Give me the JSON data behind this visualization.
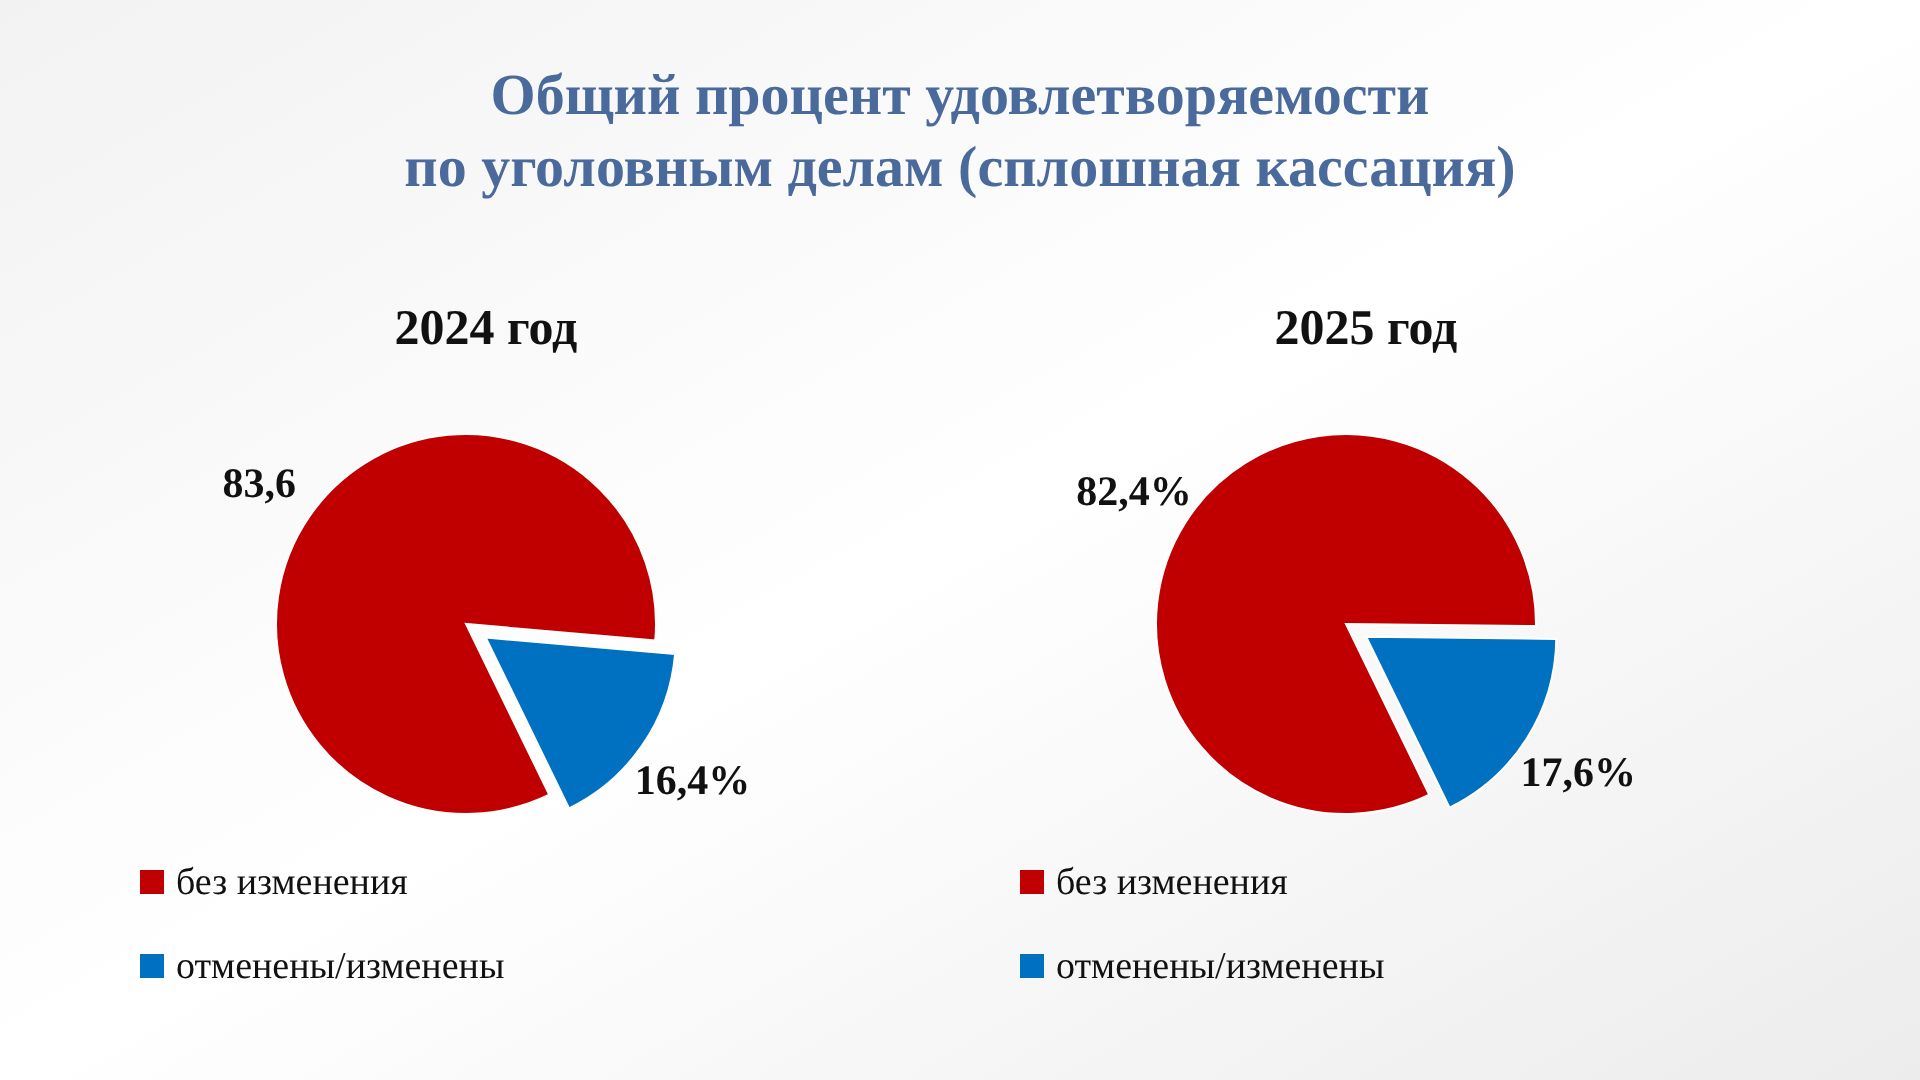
{
  "chart_data": [
    {
      "type": "pie",
      "title": "Общий процент удовлетворяемости по уголовным делам (сплошная кассация)",
      "subtitle": "2024 год",
      "categories": [
        "без изменения",
        "отменены/изменены"
      ],
      "values": [
        83.6,
        16.4
      ],
      "colors": [
        "#c00000",
        "#0070c0"
      ],
      "value_labels": [
        "83,6",
        "16,4%"
      ],
      "legend": "bottom"
    },
    {
      "type": "pie",
      "subtitle": "2025 год",
      "categories": [
        "без изменения",
        "отменены/изменены"
      ],
      "values": [
        82.4,
        17.6
      ],
      "colors": [
        "#c00000",
        "#0070c0"
      ],
      "value_labels": [
        "82,4%",
        "17,6%"
      ],
      "legend": "bottom"
    }
  ]
}
